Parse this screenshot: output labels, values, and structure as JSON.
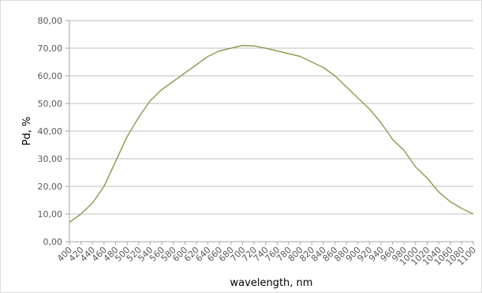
{
  "chart_data": {
    "type": "line",
    "title": "",
    "xlabel": "wavelength, nm",
    "ylabel": "Pd, %",
    "ylim": [
      0,
      80
    ],
    "y_ticks": [
      "0,00",
      "10,00",
      "20,00",
      "30,00",
      "40,00",
      "50,00",
      "60,00",
      "70,00",
      "80,00"
    ],
    "x_ticks": [
      "400",
      "420",
      "440",
      "460",
      "480",
      "500",
      "520",
      "540",
      "560",
      "580",
      "600",
      "620",
      "640",
      "660",
      "680",
      "700",
      "720",
      "740",
      "760",
      "780",
      "800",
      "820",
      "840",
      "860",
      "880",
      "900",
      "920",
      "940",
      "960",
      "980",
      "1000",
      "1020",
      "1040",
      "1060",
      "1080",
      "1100"
    ],
    "grid": true,
    "legend": "none",
    "colors": {
      "line": "#8aa155",
      "grid": "#bfbfbf",
      "axis": "#a6a6a6"
    },
    "series": [
      {
        "x": [
          400,
          420,
          440,
          460,
          480,
          500,
          520,
          540,
          560,
          580,
          600,
          620,
          640,
          660,
          680,
          700,
          720,
          740,
          760,
          780,
          800,
          820,
          840,
          860,
          880,
          900,
          920,
          940,
          960,
          980,
          1000,
          1020,
          1040,
          1060,
          1080,
          1100
        ],
        "values": [
          7,
          10,
          14,
          20,
          29,
          38,
          45,
          51,
          55,
          58,
          61,
          64,
          67,
          69,
          70,
          71,
          70.8,
          70,
          69,
          68,
          67,
          65,
          63,
          60,
          56,
          52,
          48,
          43,
          37,
          33,
          27,
          23,
          18,
          14.5,
          12,
          10
        ]
      }
    ]
  }
}
